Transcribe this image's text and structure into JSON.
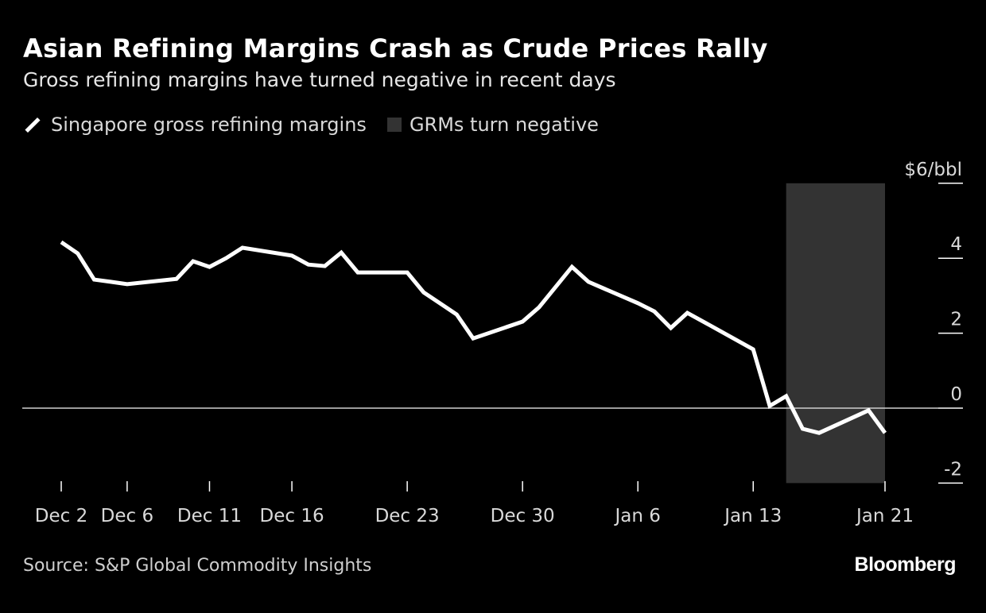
{
  "chart_data": {
    "type": "line",
    "title": "Asian Refining Margins Crash as Crude Prices Rally",
    "subtitle": "Gross refining margins have turned negative in recent days",
    "ylabel": "$6/bbl",
    "ylim": [
      -2,
      6
    ],
    "yticks": [
      -2,
      0,
      2,
      4,
      6
    ],
    "ytick_labels": [
      "-2",
      "0",
      "2",
      "4",
      "$6/bbl"
    ],
    "xticks": [
      "Dec 2",
      "Dec 6",
      "Dec 11",
      "Dec 16",
      "Dec 23",
      "Dec 30",
      "Jan 6",
      "Jan 13",
      "Jan 21"
    ],
    "xtick_dates": [
      "2024-12-02",
      "2024-12-06",
      "2024-12-11",
      "2024-12-16",
      "2024-12-23",
      "2024-12-30",
      "2025-01-06",
      "2025-01-13",
      "2025-01-21"
    ],
    "grid": false,
    "zero_line": true,
    "legend_position": "top-left",
    "series": [
      {
        "name": "Singapore gross refining margins",
        "color": "#ffffff",
        "x": [
          "2024-12-02",
          "2024-12-03",
          "2024-12-04",
          "2024-12-05",
          "2024-12-06",
          "2024-12-09",
          "2024-12-10",
          "2024-12-11",
          "2024-12-12",
          "2024-12-13",
          "2024-12-16",
          "2024-12-17",
          "2024-12-18",
          "2024-12-19",
          "2024-12-20",
          "2024-12-23",
          "2024-12-24",
          "2024-12-26",
          "2024-12-27",
          "2024-12-30",
          "2024-12-31",
          "2025-01-02",
          "2025-01-03",
          "2025-01-06",
          "2025-01-07",
          "2025-01-08",
          "2025-01-09",
          "2025-01-10",
          "2025-01-13",
          "2025-01-14",
          "2025-01-15",
          "2025-01-16",
          "2025-01-17",
          "2025-01-20",
          "2025-01-21"
        ],
        "y": [
          4.43,
          4.13,
          3.43,
          3.37,
          3.31,
          3.45,
          3.92,
          3.77,
          4.0,
          4.28,
          4.07,
          3.83,
          3.79,
          4.15,
          3.62,
          3.62,
          3.09,
          2.5,
          1.86,
          2.31,
          2.69,
          3.77,
          3.37,
          2.8,
          2.58,
          2.14,
          2.54,
          2.3,
          1.57,
          0.06,
          0.32,
          -0.55,
          -0.66,
          -0.06,
          -0.66
        ]
      }
    ],
    "shaded_region": {
      "name": "GRMs turn negative",
      "start": "2025-01-15",
      "end": "2025-01-21",
      "color": "#333333"
    },
    "source": "Source: S&P Global Commodity Insights",
    "logo": "Bloomberg"
  }
}
